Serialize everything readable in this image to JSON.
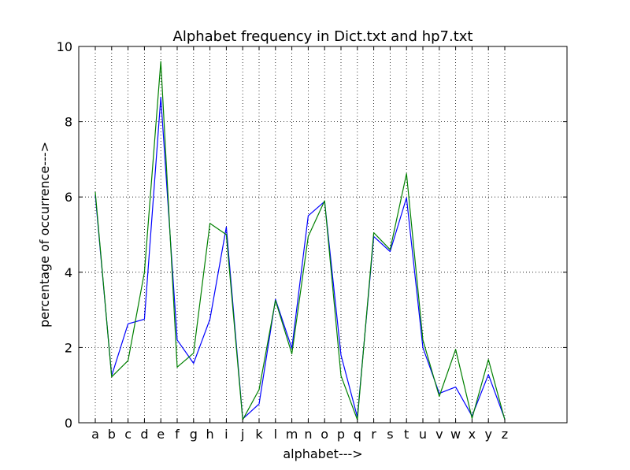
{
  "chart_data": {
    "type": "line",
    "title": "Alphabet frequency in Dict.txt and hp7.txt",
    "xlabel": "alphabet--->",
    "ylabel": "percentage of occurrence--->",
    "categories": [
      "a",
      "b",
      "c",
      "d",
      "e",
      "f",
      "g",
      "h",
      "i",
      "j",
      "k",
      "l",
      "m",
      "n",
      "o",
      "p",
      "q",
      "r",
      "s",
      "t",
      "u",
      "v",
      "w",
      "x",
      "y",
      "z"
    ],
    "ylim": [
      0,
      10
    ],
    "yticks": [
      0,
      2,
      4,
      6,
      8,
      10
    ],
    "grid": true,
    "series": [
      {
        "color": "#0000ff",
        "values": [
          6.05,
          1.25,
          2.63,
          2.75,
          8.65,
          2.2,
          1.58,
          2.75,
          5.2,
          0.1,
          0.5,
          3.28,
          1.98,
          5.5,
          5.88,
          1.8,
          0.15,
          4.95,
          4.55,
          5.98,
          2.0,
          0.78,
          0.95,
          0.18,
          1.28,
          0.1
        ]
      },
      {
        "color": "#008000",
        "values": [
          6.13,
          1.22,
          1.65,
          4.0,
          9.6,
          1.48,
          1.85,
          5.3,
          5.0,
          0.08,
          0.88,
          3.25,
          1.83,
          4.95,
          5.9,
          1.25,
          0.08,
          5.05,
          4.6,
          6.62,
          2.2,
          0.7,
          1.95,
          0.12,
          1.68,
          0.08
        ]
      }
    ]
  }
}
